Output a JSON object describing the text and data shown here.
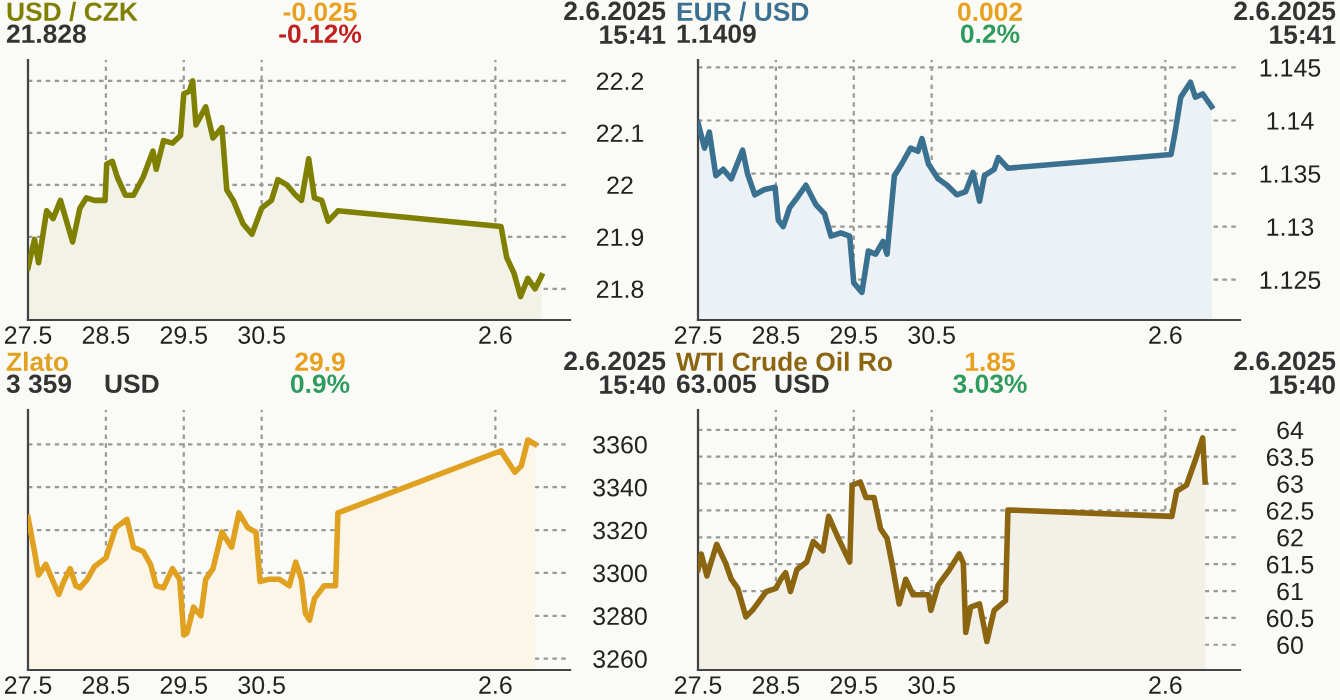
{
  "chart_data": [
    {
      "type": "area",
      "title": "USD / CZK",
      "annotations": [
        "21.828",
        "-0.025",
        "-0.12%",
        "2.6.2025\n15:41"
      ],
      "x": [
        "2025-05-27T00:00",
        "2025-05-27T02:00",
        "2025-05-27T03:15",
        "2025-05-27T05:45",
        "2025-05-27T07:45",
        "2025-05-27T10:00",
        "2025-05-27T13:45",
        "2025-05-27T16:00",
        "2025-05-27T18:00",
        "2025-05-27T20:30",
        "2025-05-27T23:45",
        "2025-05-28T00:15",
        "2025-05-28T02:00",
        "2025-05-28T03:30",
        "2025-05-28T06:00",
        "2025-05-28T08:30",
        "2025-05-28T11:30",
        "2025-05-28T14:30",
        "2025-05-28T15:30",
        "2025-05-28T17:45",
        "2025-05-28T20:30",
        "2025-05-28T23:00",
        "2025-05-29T00:00",
        "2025-05-29T01:45",
        "2025-05-29T02:45",
        "2025-05-29T03:45",
        "2025-05-29T06:45",
        "2025-05-29T09:00",
        "2025-05-29T11:45",
        "2025-05-29T13:15",
        "2025-05-29T15:15",
        "2025-05-29T18:15",
        "2025-05-29T21:00",
        "2025-05-30T00:00",
        "2025-05-30T03:00",
        "2025-05-30T05:00",
        "2025-05-30T07:45",
        "2025-05-30T10:30",
        "2025-05-30T12:15",
        "2025-05-30T14:30",
        "2025-05-30T16:15",
        "2025-05-30T18:30",
        "2025-05-30T20:30",
        "2025-05-30T23:30",
        "2025-06-02T01:45",
        "2025-06-02T03:30",
        "2025-06-02T05:45",
        "2025-06-02T07:45",
        "2025-06-02T10:00",
        "2025-06-02T12:15",
        "2025-06-02T14:15"
      ],
      "series": [
        {
          "color": "#808000",
          "values": [
            21.84,
            21.895,
            21.85,
            21.95,
            21.935,
            21.97,
            21.89,
            21.955,
            21.975,
            21.97,
            21.97,
            22.04,
            22.045,
            22.015,
            21.98,
            21.98,
            22.015,
            22.065,
            22.03,
            22.085,
            22.08,
            22.095,
            22.175,
            22.18,
            22.2,
            22.115,
            22.15,
            22.09,
            22.11,
            21.99,
            21.97,
            21.925,
            21.905,
            21.955,
            21.97,
            22.01,
            22.0,
            21.98,
            21.97,
            22.05,
            21.975,
            21.97,
            21.93,
            21.95,
            21.92,
            21.86,
            21.83,
            21.785,
            21.82,
            21.8,
            21.825
          ]
        }
      ],
      "xlim": [
        "2025-05-27",
        "2025-06-02T23:00"
      ],
      "xticks": [
        {
          "value": "2025-05-27",
          "label": "27.5"
        },
        {
          "value": "2025-05-28",
          "label": "28.5"
        },
        {
          "value": "2025-05-29",
          "label": "29.5"
        },
        {
          "value": "2025-05-30",
          "label": "30.5"
        },
        {
          "value": "2025-06-02",
          "label": "2.6"
        }
      ],
      "ylim": [
        21.74,
        22.24
      ],
      "yticks": [
        21.8,
        21.9,
        {
          "value": 22,
          "label": "22"
        },
        22.1,
        22.2
      ],
      "grid": true,
      "line_style": "solid"
    },
    {
      "type": "area",
      "title": "EUR / USD",
      "annotations": [
        "1.1409",
        "0.002",
        "0.2%",
        "2.6.2025\n15:41"
      ],
      "x": [
        "2025-05-27T00:00",
        "2025-05-27T02:00",
        "2025-05-27T03:30",
        "2025-05-27T05:30",
        "2025-05-27T07:45",
        "2025-05-27T10:15",
        "2025-05-27T13:45",
        "2025-05-27T15:15",
        "2025-05-27T17:30",
        "2025-05-27T20:30",
        "2025-05-27T23:45",
        "2025-05-28T00:45",
        "2025-05-28T02:15",
        "2025-05-28T04:15",
        "2025-05-28T06:30",
        "2025-05-28T09:15",
        "2025-05-28T12:15",
        "2025-05-28T15:00",
        "2025-05-28T17:00",
        "2025-05-28T20:00",
        "2025-05-28T22:45",
        "2025-05-29T00:00",
        "2025-05-29T02:30",
        "2025-05-29T04:30",
        "2025-05-29T06:45",
        "2025-05-29T09:00",
        "2025-05-29T10:15",
        "2025-05-29T12:30",
        "2025-05-29T14:45",
        "2025-05-29T17:30",
        "2025-05-29T19:45",
        "2025-05-29T21:00",
        "2025-05-29T23:00",
        "2025-05-30T02:00",
        "2025-05-30T04:45",
        "2025-05-30T07:45",
        "2025-05-30T10:30",
        "2025-05-30T12:45",
        "2025-05-30T14:45",
        "2025-05-30T16:15",
        "2025-05-30T19:15",
        "2025-05-30T20:30",
        "2025-05-30T23:30",
        "2025-06-02T01:45",
        "2025-06-02T03:00",
        "2025-06-02T04:45",
        "2025-06-02T07:45",
        "2025-06-02T09:15",
        "2025-06-02T11:30",
        "2025-06-02T14:15"
      ],
      "series": [
        {
          "color": "#3a7090",
          "values": [
            1.1398,
            1.1374,
            1.1389,
            1.1348,
            1.1354,
            1.1345,
            1.1372,
            1.135,
            1.133,
            1.1335,
            1.1337,
            1.1306,
            1.13,
            1.1318,
            1.1327,
            1.1339,
            1.1321,
            1.1312,
            1.1291,
            1.1294,
            1.1291,
            1.1247,
            1.1238,
            1.1277,
            1.1274,
            1.1286,
            1.1274,
            1.1348,
            1.1359,
            1.1374,
            1.1371,
            1.1383,
            1.1359,
            1.1345,
            1.1339,
            1.133,
            1.1333,
            1.1351,
            1.1324,
            1.1348,
            1.1354,
            1.1365,
            1.1355,
            1.1368,
            1.1389,
            1.1422,
            1.1436,
            1.1422,
            1.1425,
            1.1413
          ]
        }
      ],
      "xlim": [
        "2025-05-27",
        "2025-06-02T23:00"
      ],
      "xticks": [
        {
          "value": "2025-05-27",
          "label": "27.5"
        },
        {
          "value": "2025-05-28",
          "label": "28.5"
        },
        {
          "value": "2025-05-29",
          "label": "29.5"
        },
        {
          "value": "2025-05-30",
          "label": "30.5"
        },
        {
          "value": "2025-06-02",
          "label": "2.6"
        }
      ],
      "ylim": [
        1.1212,
        1.1457
      ],
      "yticks": [
        1.125,
        1.13,
        1.135,
        1.14,
        1.145
      ],
      "grid": true,
      "line_style": "solid"
    },
    {
      "type": "area",
      "title": "Zlato",
      "annotations": [
        "3 359",
        "29.9",
        "0.9%",
        "2.6.2025\n15:40",
        "USD"
      ],
      "x": [
        "2025-05-27T00:00",
        "2025-05-27T02:00",
        "2025-05-27T03:15",
        "2025-05-27T05:30",
        "2025-05-27T07:45",
        "2025-05-27T09:30",
        "2025-05-27T11:00",
        "2025-05-27T13:00",
        "2025-05-27T14:45",
        "2025-05-27T16:00",
        "2025-05-27T18:15",
        "2025-05-27T20:30",
        "2025-05-28T00:00",
        "2025-05-28T03:00",
        "2025-05-28T06:30",
        "2025-05-28T08:30",
        "2025-05-28T11:30",
        "2025-05-28T13:45",
        "2025-05-28T15:30",
        "2025-05-28T17:45",
        "2025-05-28T20:30",
        "2025-05-28T22:45",
        "2025-05-29T00:00",
        "2025-05-29T01:00",
        "2025-05-29T03:00",
        "2025-05-29T05:15",
        "2025-05-29T06:45",
        "2025-05-29T09:00",
        "2025-05-29T11:45",
        "2025-05-29T14:45",
        "2025-05-29T17:00",
        "2025-05-29T19:45",
        "2025-05-29T22:15",
        "2025-05-29T23:30",
        "2025-05-30T02:00",
        "2025-05-30T05:30",
        "2025-05-30T08:30",
        "2025-05-30T10:30",
        "2025-05-30T12:15",
        "2025-05-30T13:30",
        "2025-05-30T14:45",
        "2025-05-30T16:15",
        "2025-05-30T19:15",
        "2025-05-30T22:45",
        "2025-05-30T23:30",
        "2025-06-02T01:45",
        "2025-06-02T03:00",
        "2025-06-02T06:00",
        "2025-06-02T08:00",
        "2025-06-02T10:00",
        "2025-06-02T12:15"
      ],
      "series": [
        {
          "color": "#e0a020",
          "values": [
            3326,
            3310,
            3299,
            3304,
            3296,
            3290,
            3296,
            3302,
            3294,
            3293,
            3297,
            3303,
            3307,
            3321,
            3325,
            3312,
            3310,
            3304,
            3294,
            3293,
            3302,
            3297,
            3271,
            3272,
            3284,
            3280,
            3297,
            3302,
            3319,
            3312,
            3328,
            3321,
            3319,
            3296,
            3297,
            3297,
            3294,
            3305,
            3297,
            3281,
            3278,
            3288,
            3294,
            3294,
            3328,
            3357,
            3354,
            3347,
            3350,
            3362,
            3360
          ]
        }
      ],
      "xlim": [
        "2025-05-27",
        "2025-06-02T23:00"
      ],
      "xticks": [
        {
          "value": "2025-05-27",
          "label": "27.5"
        },
        {
          "value": "2025-05-28",
          "label": "28.5"
        },
        {
          "value": "2025-05-29",
          "label": "29.5"
        },
        {
          "value": "2025-05-30",
          "label": "30.5"
        },
        {
          "value": "2025-06-02",
          "label": "2.6"
        }
      ],
      "ylim": [
        3254.7,
        3376
      ],
      "yticks": [
        3260,
        3280,
        3300,
        3320,
        3340,
        3360
      ],
      "grid": true,
      "line_style": "solid"
    },
    {
      "type": "area",
      "title": "WTI Crude Oil Ro",
      "annotations": [
        "63.005",
        "1.85",
        "3.03%",
        "2.6.2025\n15:40",
        "USD"
      ],
      "x": [
        "2025-05-27T00:00",
        "2025-05-27T01:00",
        "2025-05-27T02:45",
        "2025-05-27T05:45",
        "2025-05-27T08:30",
        "2025-05-27T10:15",
        "2025-05-27T12:15",
        "2025-05-27T14:45",
        "2025-05-27T16:45",
        "2025-05-27T18:15",
        "2025-05-27T21:00",
        "2025-05-28T00:00",
        "2025-05-28T01:30",
        "2025-05-28T03:00",
        "2025-05-28T04:30",
        "2025-05-28T06:30",
        "2025-05-28T09:30",
        "2025-05-28T11:30",
        "2025-05-28T14:30",
        "2025-05-28T16:15",
        "2025-05-28T19:15",
        "2025-05-28T22:45",
        "2025-05-28T23:30",
        "2025-05-29T02:00",
        "2025-05-29T03:45",
        "2025-05-29T06:15",
        "2025-05-29T08:15",
        "2025-05-29T10:15",
        "2025-05-29T11:45",
        "2025-05-29T14:00",
        "2025-05-29T16:00",
        "2025-05-29T18:15",
        "2025-05-29T23:00",
        "2025-05-29T23:45",
        "2025-05-30T02:00",
        "2025-05-30T05:30",
        "2025-05-30T08:30",
        "2025-05-30T09:45",
        "2025-05-30T10:30",
        "2025-05-30T12:00",
        "2025-05-30T14:45",
        "2025-05-30T17:00",
        "2025-05-30T19:15",
        "2025-05-30T22:45",
        "2025-05-30T23:30",
        "2025-06-02T02:00",
        "2025-06-02T03:30",
        "2025-06-02T06:30",
        "2025-06-02T09:15",
        "2025-06-02T11:30",
        "2025-06-02T12:15"
      ],
      "series": [
        {
          "color": "#8b6510",
          "values": [
            61.4,
            61.69,
            61.28,
            61.87,
            61.52,
            61.22,
            61.05,
            60.52,
            60.64,
            60.76,
            60.99,
            61.05,
            61.22,
            61.34,
            60.99,
            61.4,
            61.54,
            61.92,
            61.75,
            62.39,
            61.98,
            61.54,
            62.97,
            63.03,
            62.74,
            62.74,
            62.16,
            61.98,
            61.52,
            60.76,
            61.22,
            60.93,
            60.93,
            60.64,
            61.11,
            61.4,
            61.69,
            61.52,
            60.23,
            60.7,
            60.76,
            60.06,
            60.64,
            60.82,
            62.51,
            62.39,
            62.86,
            62.97,
            63.44,
            63.85,
            63.03
          ]
        }
      ],
      "xlim": [
        "2025-05-27",
        "2025-06-02T23:00"
      ],
      "xticks": [
        {
          "value": "2025-05-27",
          "label": "27.5"
        },
        {
          "value": "2025-05-28",
          "label": "28.5"
        },
        {
          "value": "2025-05-29",
          "label": "29.5"
        },
        {
          "value": "2025-05-30",
          "label": "30.5"
        },
        {
          "value": "2025-06-02",
          "label": "2.6"
        }
      ],
      "ylim": [
        59.53,
        64.37
      ],
      "yticks": [
        60,
        60.5,
        61,
        61.5,
        62,
        62.5,
        63,
        63.5,
        64
      ],
      "grid": true,
      "line_style": "solid"
    }
  ]
}
